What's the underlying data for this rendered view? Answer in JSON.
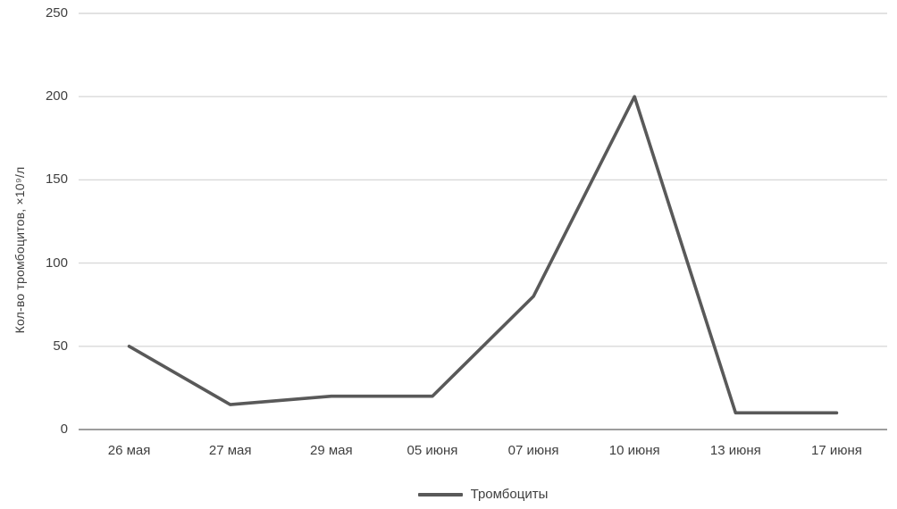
{
  "chart_data": {
    "type": "line",
    "title": "",
    "categories": [
      "26 мая",
      "27 мая",
      "29 мая",
      "05 июня",
      "07 июня",
      "10 июня",
      "13 июня",
      "17 июня"
    ],
    "series": [
      {
        "name": "Тромбоциты",
        "values": [
          50,
          15,
          20,
          20,
          80,
          200,
          10,
          10
        ]
      }
    ],
    "xlabel": "",
    "ylabel": "Кол-во тромбоцитов, ×10⁹/л",
    "ylim": [
      0,
      250
    ],
    "yticks": [
      0,
      50,
      100,
      150,
      200,
      250
    ],
    "grid": true,
    "legend_position": "bottom-center",
    "colors": {
      "line": "#595959",
      "gridline": "#d9d9d9",
      "axis_line": "#9d9d9d",
      "text": "#3f3f3f",
      "background": "#ffffff"
    }
  }
}
